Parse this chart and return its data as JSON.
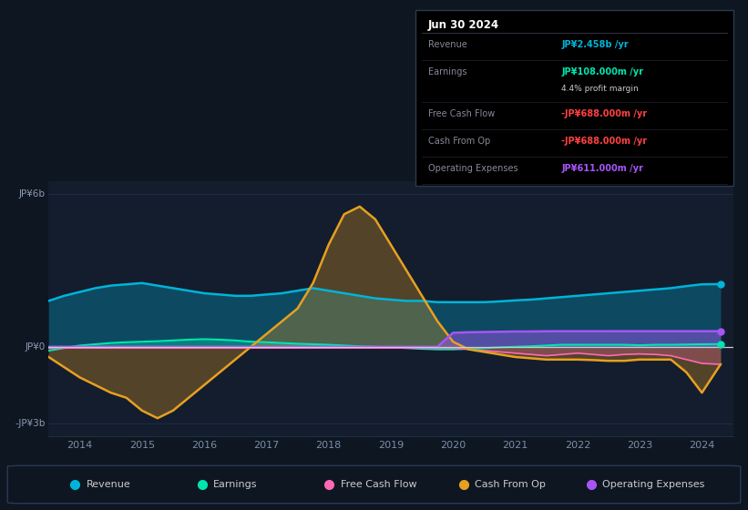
{
  "bg_color": "#0e1621",
  "plot_bg_color": "#131d2e",
  "years": [
    2013.5,
    2013.75,
    2014.0,
    2014.25,
    2014.5,
    2014.75,
    2015.0,
    2015.25,
    2015.5,
    2015.75,
    2016.0,
    2016.25,
    2016.5,
    2016.75,
    2017.0,
    2017.25,
    2017.5,
    2017.75,
    2018.0,
    2018.25,
    2018.5,
    2018.75,
    2019.0,
    2019.25,
    2019.5,
    2019.75,
    2020.0,
    2020.25,
    2020.5,
    2020.75,
    2021.0,
    2021.25,
    2021.5,
    2021.75,
    2022.0,
    2022.25,
    2022.5,
    2022.75,
    2023.0,
    2023.25,
    2023.5,
    2023.75,
    2024.0,
    2024.3
  ],
  "revenue": [
    1.8,
    2.0,
    2.15,
    2.3,
    2.4,
    2.45,
    2.5,
    2.4,
    2.3,
    2.2,
    2.1,
    2.05,
    2.0,
    2.0,
    2.05,
    2.1,
    2.2,
    2.3,
    2.2,
    2.1,
    2.0,
    1.9,
    1.85,
    1.8,
    1.8,
    1.75,
    1.75,
    1.75,
    1.75,
    1.78,
    1.82,
    1.85,
    1.9,
    1.95,
    2.0,
    2.05,
    2.1,
    2.15,
    2.2,
    2.25,
    2.3,
    2.38,
    2.45,
    2.458
  ],
  "earnings": [
    -0.15,
    -0.05,
    0.05,
    0.1,
    0.15,
    0.18,
    0.2,
    0.22,
    0.25,
    0.28,
    0.3,
    0.28,
    0.25,
    0.2,
    0.18,
    0.15,
    0.12,
    0.1,
    0.08,
    0.05,
    0.02,
    0.0,
    -0.02,
    -0.05,
    -0.08,
    -0.1,
    -0.1,
    -0.08,
    -0.05,
    -0.02,
    0.0,
    0.02,
    0.05,
    0.08,
    0.08,
    0.08,
    0.08,
    0.08,
    0.06,
    0.08,
    0.08,
    0.09,
    0.1,
    0.108
  ],
  "free_cash_flow": [
    -0.05,
    -0.05,
    -0.05,
    -0.05,
    -0.05,
    -0.05,
    -0.05,
    -0.05,
    -0.05,
    -0.05,
    -0.05,
    -0.05,
    -0.05,
    -0.05,
    -0.05,
    -0.05,
    -0.05,
    -0.05,
    -0.05,
    -0.05,
    -0.05,
    -0.05,
    -0.05,
    -0.05,
    -0.05,
    -0.05,
    -0.05,
    -0.1,
    -0.15,
    -0.2,
    -0.25,
    -0.3,
    -0.35,
    -0.3,
    -0.25,
    -0.3,
    -0.35,
    -0.3,
    -0.28,
    -0.3,
    -0.35,
    -0.5,
    -0.65,
    -0.688
  ],
  "cash_from_op": [
    -0.4,
    -0.8,
    -1.2,
    -1.5,
    -1.8,
    -2.0,
    -2.5,
    -2.8,
    -2.5,
    -2.0,
    -1.5,
    -1.0,
    -0.5,
    0.0,
    0.5,
    1.0,
    1.5,
    2.5,
    4.0,
    5.2,
    5.5,
    5.0,
    4.0,
    3.0,
    2.0,
    1.0,
    0.2,
    -0.1,
    -0.2,
    -0.3,
    -0.4,
    -0.45,
    -0.5,
    -0.5,
    -0.5,
    -0.52,
    -0.55,
    -0.55,
    -0.5,
    -0.5,
    -0.5,
    -1.0,
    -1.8,
    -0.688
  ],
  "operating_expenses": [
    0.0,
    0.0,
    0.0,
    0.0,
    0.0,
    0.0,
    0.0,
    0.0,
    0.0,
    0.0,
    0.0,
    0.0,
    0.0,
    0.0,
    0.0,
    0.0,
    0.0,
    0.0,
    0.0,
    0.0,
    0.0,
    0.0,
    0.0,
    0.0,
    0.0,
    0.0,
    0.55,
    0.57,
    0.58,
    0.59,
    0.6,
    0.6,
    0.61,
    0.61,
    0.61,
    0.61,
    0.61,
    0.611,
    0.611,
    0.611,
    0.611,
    0.611,
    0.611,
    0.611
  ],
  "revenue_color": "#00b4d8",
  "earnings_color": "#00e5b0",
  "fcf_color": "#ff69b4",
  "cash_op_color": "#e8a020",
  "op_exp_color": "#a855f7",
  "zero_line_color": "#cccccc",
  "grid_color": "#1e2d40",
  "ylim": [
    -3.5,
    6.5
  ],
  "xlim": [
    2013.5,
    2024.5
  ],
  "ytick_vals": [
    -3,
    0,
    6
  ],
  "ytick_labels": [
    "-JP¥3b",
    "JP¥0",
    "JP¥6b"
  ],
  "xticks": [
    2014,
    2015,
    2016,
    2017,
    2018,
    2019,
    2020,
    2021,
    2022,
    2023,
    2024
  ],
  "legend_items": [
    "Revenue",
    "Earnings",
    "Free Cash Flow",
    "Cash From Op",
    "Operating Expenses"
  ],
  "legend_colors": [
    "#00b4d8",
    "#00e5b0",
    "#ff69b4",
    "#e8a020",
    "#a855f7"
  ],
  "info_box": {
    "date": "Jun 30 2024",
    "rows": [
      {
        "label": "Revenue",
        "value": "JP¥2.458b /yr",
        "val_color": "#00b4d8",
        "has_sub": false
      },
      {
        "label": "Earnings",
        "value": "JP¥108.000m /yr",
        "val_color": "#00e5b0",
        "has_sub": true,
        "sub": "4.4% profit margin"
      },
      {
        "label": "Free Cash Flow",
        "value": "-JP¥688.000m /yr",
        "val_color": "#ff4040",
        "has_sub": false
      },
      {
        "label": "Cash From Op",
        "value": "-JP¥688.000m /yr",
        "val_color": "#ff4040",
        "has_sub": false
      },
      {
        "label": "Operating Expenses",
        "value": "JP¥611.000m /yr",
        "val_color": "#a855f7",
        "has_sub": false
      }
    ]
  }
}
